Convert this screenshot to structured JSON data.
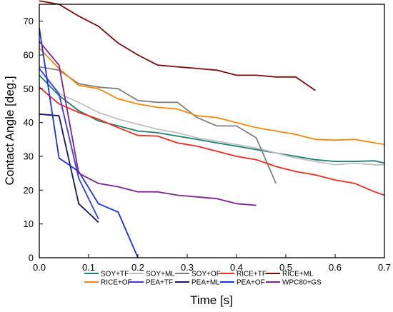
{
  "chart_data": {
    "type": "line",
    "title": "",
    "xlabel": "Time [s]",
    "ylabel": "Contact Angle [deg.]",
    "xlim": [
      0.0,
      0.7
    ],
    "ylim": [
      0,
      75
    ],
    "grid": false,
    "legend_position": "bottom",
    "xticks": [
      {
        "value": 0.0,
        "label": "0.0"
      },
      {
        "value": 0.1,
        "label": "0.1"
      },
      {
        "value": 0.2,
        "label": "0.2"
      },
      {
        "value": 0.3,
        "label": "0.3"
      },
      {
        "value": 0.4,
        "label": "0.4"
      },
      {
        "value": 0.5,
        "label": "0.5"
      },
      {
        "value": 0.6,
        "label": "0.6"
      },
      {
        "value": 0.7,
        "label": "0.7"
      }
    ],
    "yticks": [
      {
        "value": 0,
        "label": "0"
      },
      {
        "value": 10,
        "label": "10"
      },
      {
        "value": 20,
        "label": "20"
      },
      {
        "value": 30,
        "label": "30"
      },
      {
        "value": 40,
        "label": "40"
      },
      {
        "value": 50,
        "label": "50"
      },
      {
        "value": 60,
        "label": "60"
      },
      {
        "value": 70,
        "label": "70"
      }
    ],
    "series": [
      {
        "name": "SOY+TF",
        "color": "#1a7f72",
        "x": [
          0.0,
          0.04,
          0.08,
          0.12,
          0.16,
          0.2,
          0.24,
          0.28,
          0.32,
          0.36,
          0.4,
          0.44,
          0.48,
          0.52,
          0.56,
          0.6,
          0.64,
          0.68,
          0.7
        ],
        "y": [
          54.0,
          48.0,
          43.5,
          40.5,
          39.0,
          37.5,
          37.0,
          36.0,
          35.0,
          34.0,
          33.0,
          32.0,
          31.0,
          30.0,
          29.0,
          28.5,
          28.5,
          28.7,
          28.0
        ]
      },
      {
        "name": "SOY+ML",
        "color": "#c0c0c0",
        "x": [
          0.0,
          0.04,
          0.08,
          0.12,
          0.16,
          0.2,
          0.24,
          0.28,
          0.32,
          0.36,
          0.4,
          0.44,
          0.48,
          0.52,
          0.56,
          0.6,
          0.64,
          0.68,
          0.7
        ],
        "y": [
          56.0,
          48.5,
          46.0,
          43.0,
          41.0,
          39.5,
          38.0,
          37.0,
          35.5,
          34.5,
          33.5,
          32.5,
          31.0,
          29.5,
          28.5,
          27.5,
          28.0,
          27.5,
          27.5
        ]
      },
      {
        "name": "SOY+OF",
        "color": "#7f7f7f",
        "x": [
          0.0,
          0.04,
          0.08,
          0.12,
          0.16,
          0.2,
          0.24,
          0.28,
          0.32,
          0.36,
          0.4,
          0.44,
          0.48
        ],
        "y": [
          56.5,
          55.5,
          51.5,
          50.5,
          50.0,
          46.5,
          46.0,
          46.0,
          41.5,
          39.0,
          39.0,
          35.5,
          22.0
        ]
      },
      {
        "name": "RICE+TF",
        "color": "#ee2b1f",
        "x": [
          0.0,
          0.04,
          0.08,
          0.12,
          0.16,
          0.2,
          0.24,
          0.28,
          0.32,
          0.36,
          0.4,
          0.44,
          0.48,
          0.52,
          0.56,
          0.6,
          0.64,
          0.68,
          0.7
        ],
        "y": [
          50.5,
          45.5,
          43.0,
          41.0,
          38.5,
          36.2,
          36.0,
          34.0,
          33.0,
          31.5,
          30.0,
          29.0,
          27.0,
          25.5,
          24.5,
          23.0,
          22.0,
          19.5,
          18.5
        ]
      },
      {
        "name": "RICE+ML",
        "color": "#7a0b0b",
        "x": [
          0.0,
          0.04,
          0.08,
          0.12,
          0.16,
          0.2,
          0.24,
          0.28,
          0.32,
          0.36,
          0.4,
          0.44,
          0.48,
          0.52,
          0.56
        ],
        "y": [
          76.0,
          75.0,
          71.5,
          68.5,
          63.5,
          60.0,
          57.0,
          56.5,
          56.0,
          55.5,
          54.0,
          54.0,
          53.5,
          53.5,
          49.5
        ]
      },
      {
        "name": "RICE+OF",
        "color": "#f5890f",
        "x": [
          0.0,
          0.04,
          0.08,
          0.12,
          0.16,
          0.2,
          0.24,
          0.28,
          0.32,
          0.36,
          0.4,
          0.44,
          0.48,
          0.52,
          0.56,
          0.6,
          0.64,
          0.68,
          0.7
        ],
        "y": [
          62.0,
          56.0,
          51.0,
          50.0,
          47.0,
          45.5,
          44.5,
          44.0,
          42.0,
          41.5,
          40.0,
          38.5,
          37.5,
          36.5,
          35.0,
          34.8,
          35.0,
          34.0,
          33.5
        ]
      },
      {
        "name": "PEA+TF",
        "color": "#3a3ae0",
        "x": [
          0.0,
          0.04,
          0.08,
          0.12
        ],
        "y": [
          56.0,
          48.5,
          23.5,
          11.5
        ]
      },
      {
        "name": "PEA+ML",
        "color": "#14146b",
        "x": [
          0.0,
          0.04,
          0.08,
          0.12
        ],
        "y": [
          42.5,
          42.0,
          16.0,
          10.5
        ]
      },
      {
        "name": "PEA+OF",
        "color": "#1530e8",
        "x": [
          0.0,
          0.04,
          0.08,
          0.12,
          0.16,
          0.2
        ],
        "y": [
          68.0,
          29.5,
          25.5,
          16.0,
          13.5,
          0.0
        ]
      },
      {
        "name": "WPC80+GS",
        "color": "#7b2392",
        "x": [
          0.0,
          0.04,
          0.08,
          0.12,
          0.16,
          0.2,
          0.24,
          0.28,
          0.32,
          0.36,
          0.4,
          0.44
        ],
        "y": [
          64.0,
          57.0,
          25.0,
          22.0,
          21.0,
          19.5,
          19.5,
          18.5,
          18.0,
          17.5,
          16.0,
          15.5
        ]
      }
    ]
  }
}
